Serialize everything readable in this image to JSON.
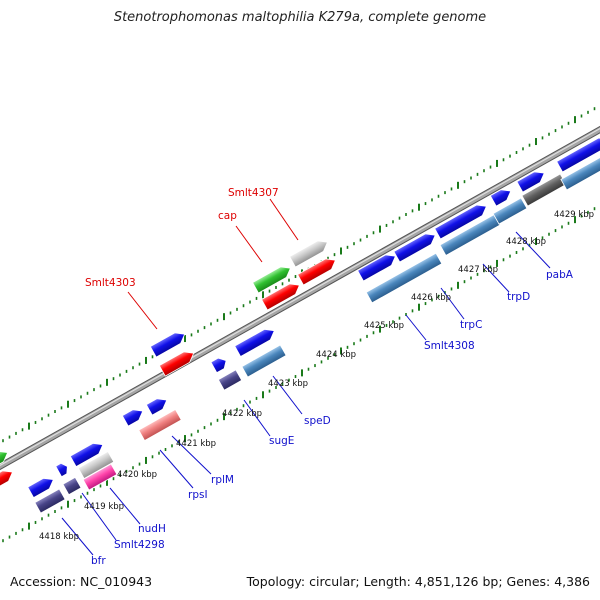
{
  "title": "Stenotrophomonas maltophilia K279a, complete genome",
  "footer": {
    "accession": "Accession: NC_010943",
    "summary": "Topology: circular; Length: 4,851,126 bp; Genes: 4,386"
  },
  "colors": {
    "backbone": "#8c8c8c",
    "ticks": "#1a7a1a",
    "forward_cds": "#1010e8",
    "reverse_cds": "#4682b4",
    "rrna_red": "#ff0000",
    "label_reverse": "#1010cc",
    "label_forward": "#dd0000"
  },
  "scale_labels": [
    {
      "id": "4418",
      "text": "4418 kbp"
    },
    {
      "id": "4419",
      "text": "4419 kbp"
    },
    {
      "id": "4420",
      "text": "4420 kbp"
    },
    {
      "id": "4421",
      "text": "4421 kbp"
    },
    {
      "id": "4422",
      "text": "4422 kbp"
    },
    {
      "id": "4423",
      "text": "4423 kbp"
    },
    {
      "id": "4424",
      "text": "4424 kbp"
    },
    {
      "id": "4425",
      "text": "4425 kbp"
    },
    {
      "id": "4426",
      "text": "4426 kbp"
    },
    {
      "id": "4427",
      "text": "4427 kbp"
    },
    {
      "id": "4428",
      "text": "4428 kbp"
    },
    {
      "id": "4429",
      "text": "4429 kbp"
    }
  ],
  "gene_labels_outer": [
    {
      "id": "smlt4303",
      "text": "Smlt4303"
    },
    {
      "id": "cap",
      "text": "cap"
    },
    {
      "id": "smlt4307",
      "text": "Smlt4307"
    }
  ],
  "gene_labels_inner": [
    {
      "id": "bfr",
      "text": "bfr"
    },
    {
      "id": "smlt4298",
      "text": "Smlt4298"
    },
    {
      "id": "nudh",
      "text": "nudH"
    },
    {
      "id": "rpsl",
      "text": "rpsI"
    },
    {
      "id": "rplm",
      "text": "rplM"
    },
    {
      "id": "suge",
      "text": "sugE"
    },
    {
      "id": "sped",
      "text": "speD"
    },
    {
      "id": "smlt4308",
      "text": "Smlt4308"
    },
    {
      "id": "trpc",
      "text": "trpC"
    },
    {
      "id": "trpd",
      "text": "trpD"
    },
    {
      "id": "paba",
      "text": "pabA"
    }
  ]
}
